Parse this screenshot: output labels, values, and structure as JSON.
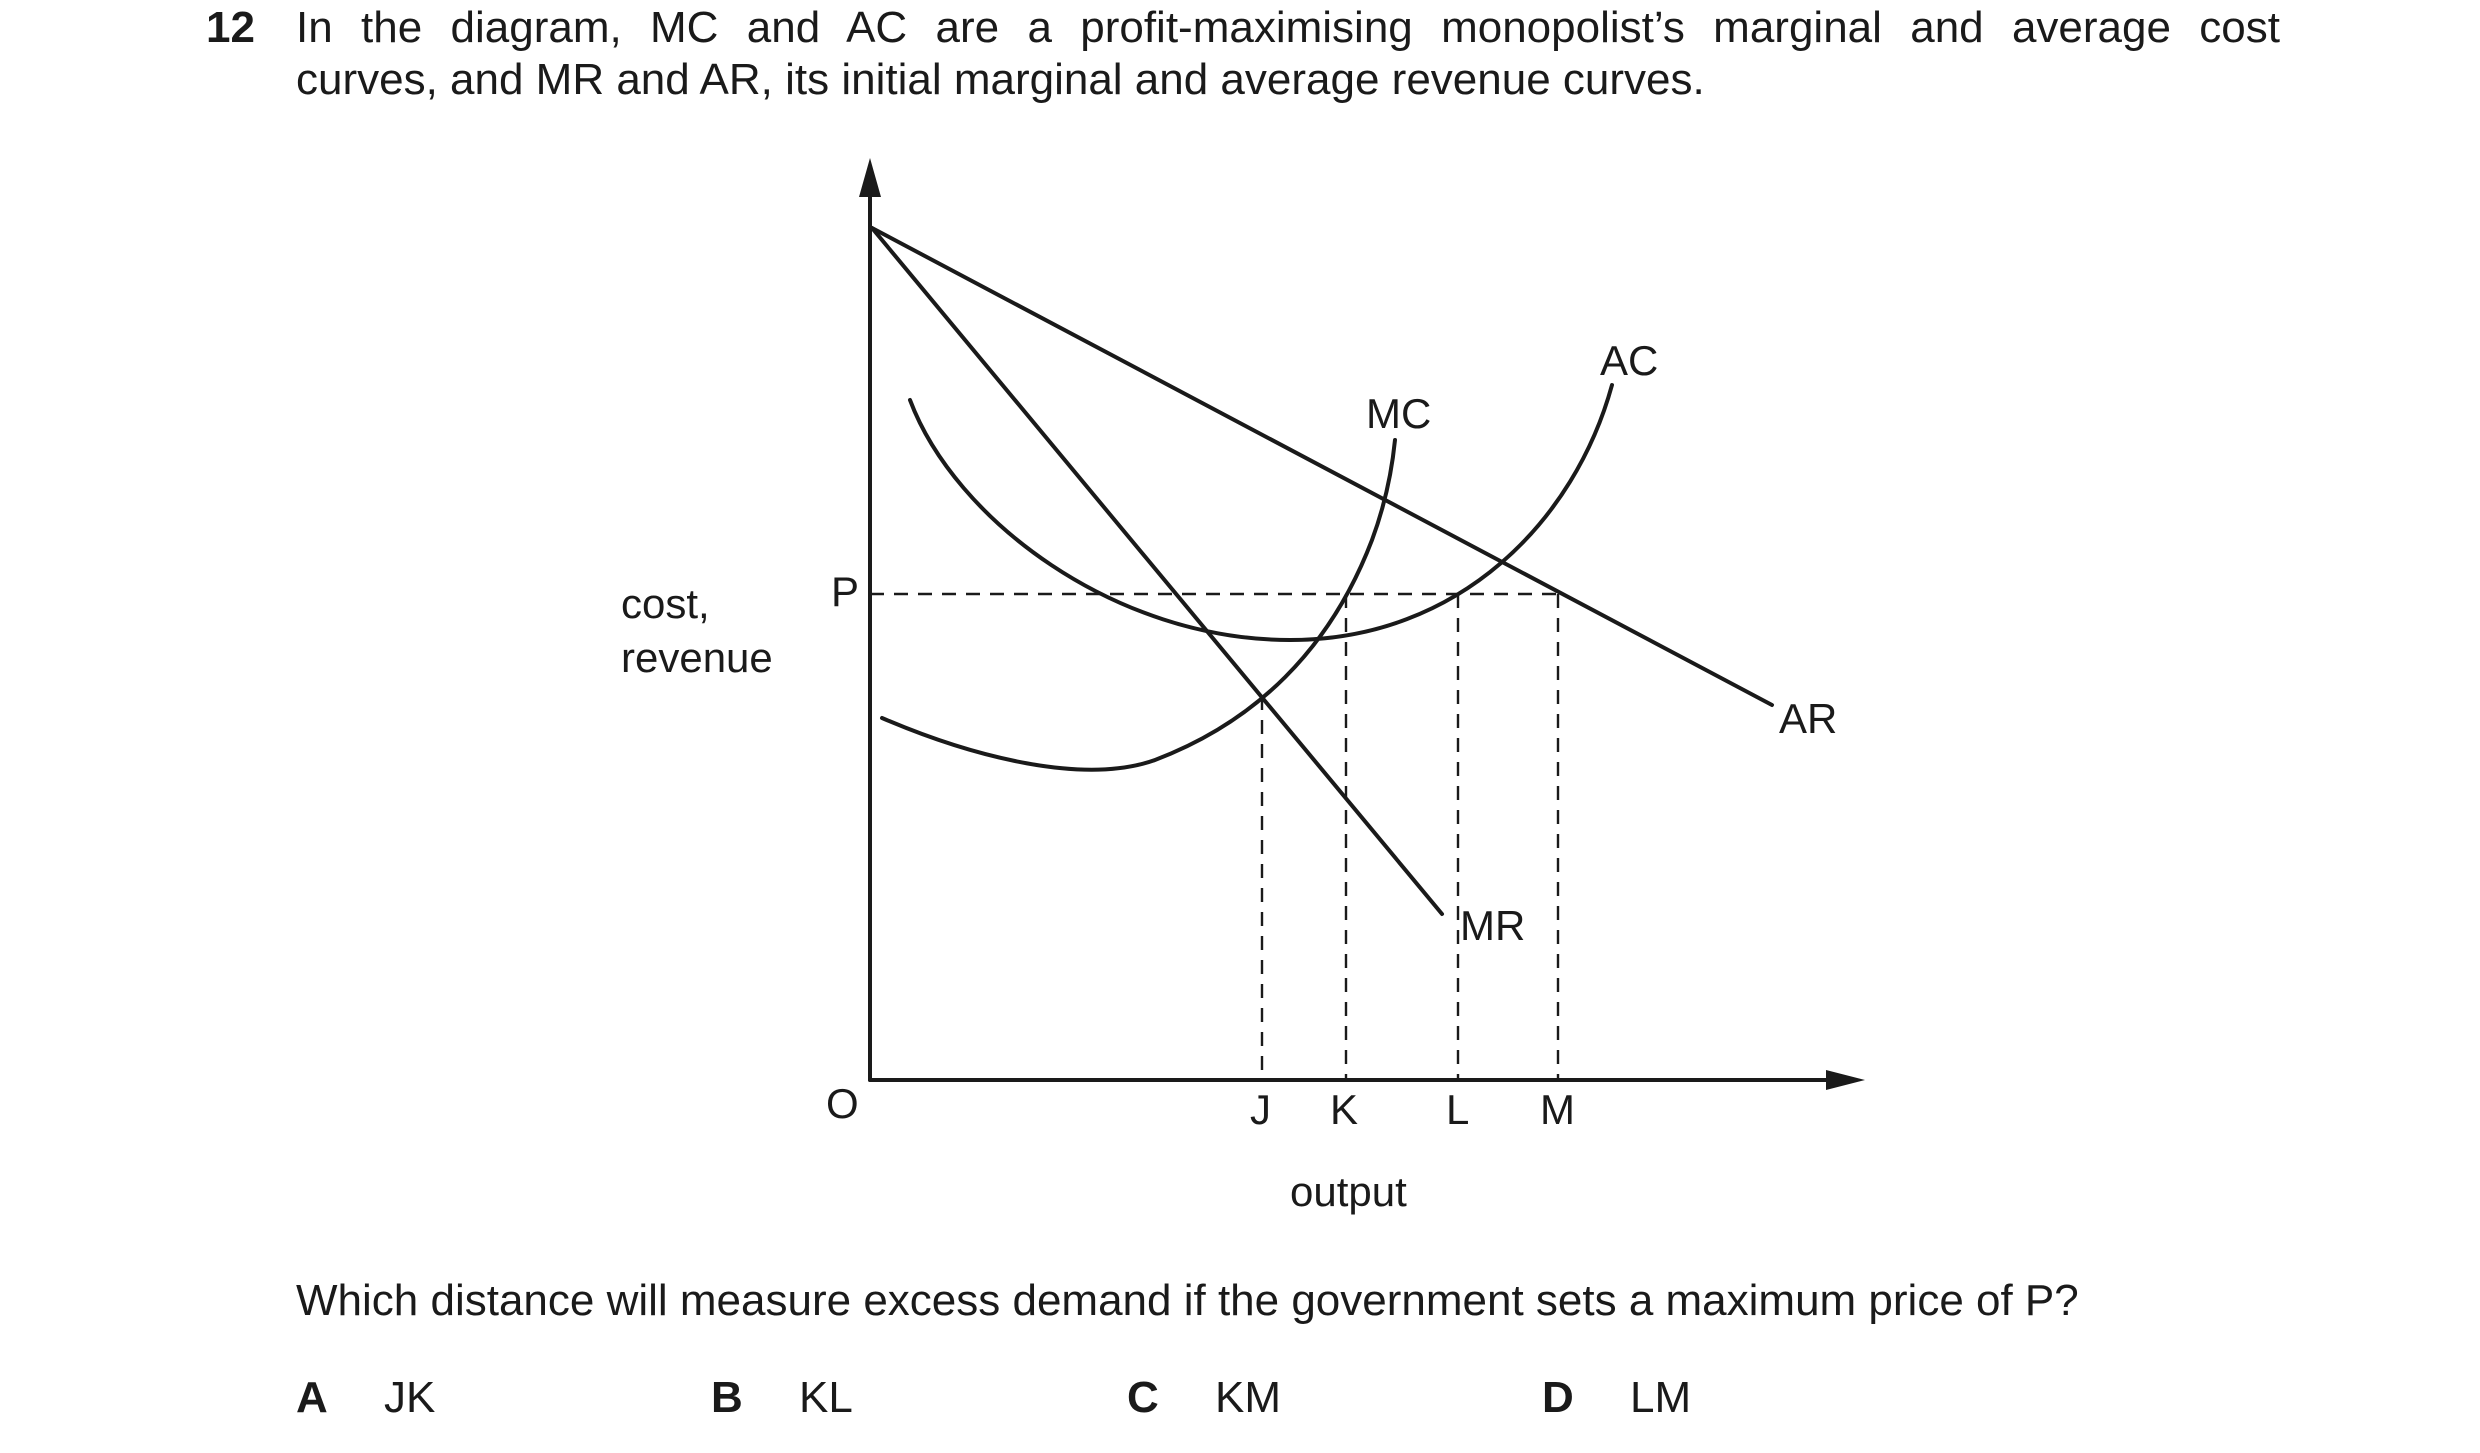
{
  "question": {
    "number": "12",
    "stem_line1": "In the diagram, MC and AC are a profit-maximising monopolist’s marginal and average cost",
    "stem_line2": "curves, and MR and AR, its initial marginal and average revenue curves.",
    "prompt": "Which distance will measure excess demand if the government sets a maximum price of P?"
  },
  "diagram": {
    "y_axis_label_line1": "cost,",
    "y_axis_label_line2": "revenue",
    "x_axis_label": "output",
    "origin_label": "O",
    "price_label": "P",
    "curve_labels": {
      "mc": "MC",
      "ac": "AC",
      "ar": "AR",
      "mr": "MR"
    },
    "output_labels": {
      "j": "J",
      "k": "K",
      "l": "L",
      "m": "M"
    }
  },
  "options": [
    {
      "letter": "A",
      "text": "JK"
    },
    {
      "letter": "B",
      "text": "KL"
    },
    {
      "letter": "C",
      "text": "KM"
    },
    {
      "letter": "D",
      "text": "LM"
    }
  ]
}
